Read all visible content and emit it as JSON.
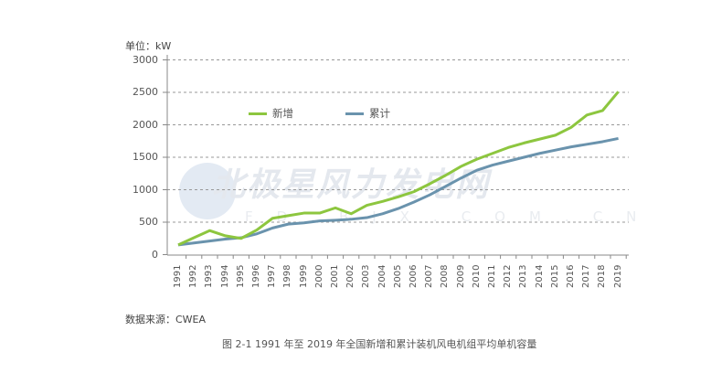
{
  "chart_data": {
    "type": "line",
    "title": "图 2-1 1991 年至 2019 年全国新增和累计装机风电机组平均单机容量",
    "xlabel": "",
    "ylabel": "单位：kW",
    "ylim": [
      0,
      3000
    ],
    "yticks": [
      "0",
      "500",
      "1000",
      "1500",
      "2000",
      "2500",
      "3000"
    ],
    "grid": true,
    "legend_position": "upper-left-inside",
    "categories": [
      "1991",
      "1992",
      "1993",
      "1994",
      "1995",
      "1996",
      "1997",
      "1998",
      "1999",
      "2000",
      "2001",
      "2002",
      "2003",
      "2004",
      "2005",
      "2006",
      "2007",
      "2008",
      "2009",
      "2010",
      "2011",
      "2012",
      "2013",
      "2014",
      "2015",
      "2016",
      "2017",
      "2018",
      "2019"
    ],
    "series": [
      {
        "name": "新增",
        "color": "#8dc63f",
        "values": [
          150,
          260,
          370,
          290,
          250,
          380,
          560,
          600,
          640,
          640,
          720,
          630,
          760,
          820,
          890,
          970,
          1090,
          1220,
          1360,
          1470,
          1560,
          1650,
          1720,
          1780,
          1840,
          1960,
          2150,
          2220,
          2510
        ]
      },
      {
        "name": "累计",
        "color": "#6a93ad",
        "values": [
          150,
          180,
          210,
          240,
          260,
          320,
          410,
          470,
          490,
          520,
          530,
          545,
          570,
          630,
          710,
          810,
          920,
          1050,
          1180,
          1300,
          1380,
          1440,
          1500,
          1560,
          1610,
          1660,
          1700,
          1740,
          1790
        ]
      }
    ],
    "source": "数据来源：CWEA"
  },
  "labels": {
    "unit": "单位：kW",
    "source": "数据来源：CWEA",
    "caption": "图 2-1 1991 年至 2019 年全国新增和累计装机风电机组平均单机容量",
    "legend_new": "新增",
    "legend_cum": "累计",
    "watermark": "北极星风力发电网",
    "watermark_sub": "FD.BJX.COM.CN"
  }
}
